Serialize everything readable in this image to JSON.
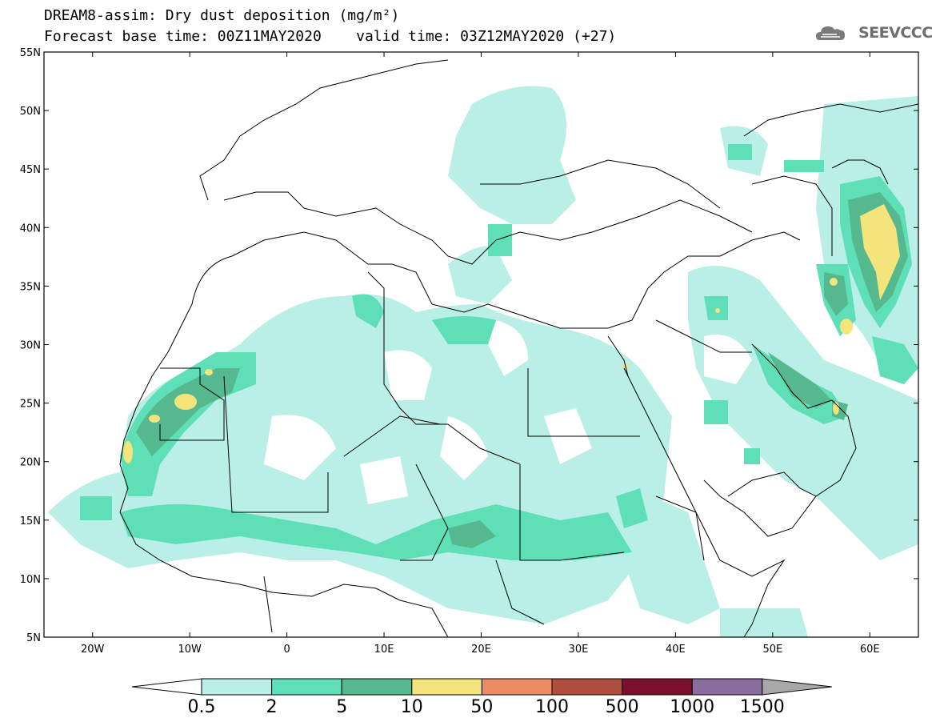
{
  "title": {
    "line1": "DREAM8-assim: Dry dust deposition (mg/m²)",
    "line2": "Forecast base time: 00Z11MAY2020    valid time: 03Z12MAY2020 (+27)"
  },
  "logo": {
    "text": "SEEVCCC",
    "icon": "cloud-logo-icon"
  },
  "map": {
    "lat_range": [
      5,
      55
    ],
    "lon_range": [
      -25,
      65
    ],
    "lat_ticks": [
      {
        "value": 55,
        "label": "55N"
      },
      {
        "value": 50,
        "label": "50N"
      },
      {
        "value": 45,
        "label": "45N"
      },
      {
        "value": 40,
        "label": "40N"
      },
      {
        "value": 35,
        "label": "35N"
      },
      {
        "value": 30,
        "label": "30N"
      },
      {
        "value": 25,
        "label": "25N"
      },
      {
        "value": 20,
        "label": "20N"
      },
      {
        "value": 15,
        "label": "15N"
      },
      {
        "value": 10,
        "label": "10N"
      },
      {
        "value": 5,
        "label": "5N"
      }
    ],
    "lon_ticks": [
      {
        "value": -20,
        "label": "20W"
      },
      {
        "value": -10,
        "label": "10W"
      },
      {
        "value": 0,
        "label": "0"
      },
      {
        "value": 10,
        "label": "10E"
      },
      {
        "value": 20,
        "label": "20E"
      },
      {
        "value": 30,
        "label": "30E"
      },
      {
        "value": 40,
        "label": "40E"
      },
      {
        "value": 50,
        "label": "50E"
      },
      {
        "value": 60,
        "label": "60E"
      }
    ]
  },
  "colorbar": {
    "levels": [
      "0.5",
      "2",
      "5",
      "10",
      "50",
      "100",
      "500",
      "1000",
      "1500"
    ],
    "colors": [
      "#b9efe6",
      "#5fdfb8",
      "#56b88f",
      "#f3e57b",
      "#eb8c63",
      "#b04e3f",
      "#7b0f2c",
      "#8a6d9c"
    ],
    "under_color": "#ffffff",
    "over_color": "#a8a8a8"
  }
}
